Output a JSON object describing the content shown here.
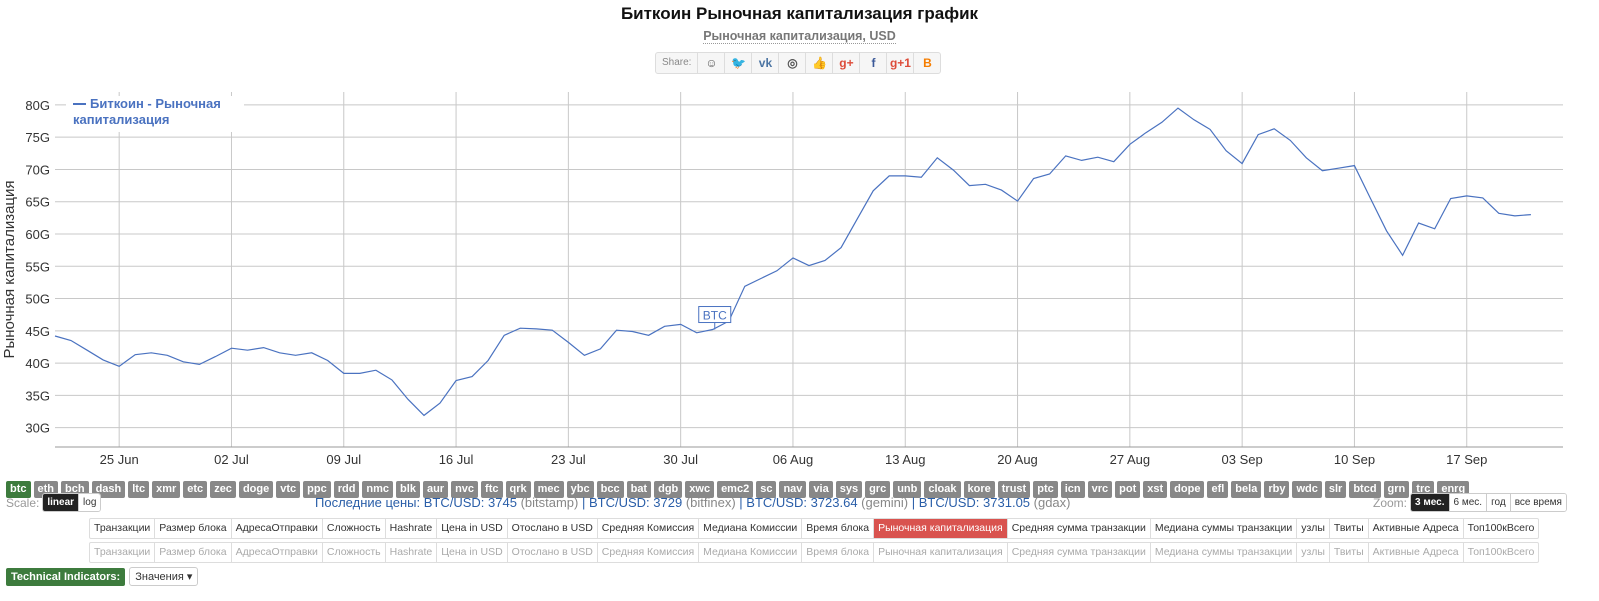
{
  "header": {
    "title": "Биткоин Рыночная капитализация график",
    "subtitle": "Рыночная капитализация, USD"
  },
  "share": {
    "label": "Share:",
    "buttons": [
      {
        "name": "reddit-icon",
        "glyph": "☺",
        "color": "#555"
      },
      {
        "name": "twitter-icon",
        "glyph": "🐦",
        "color": "#1da1f2"
      },
      {
        "name": "vk-icon",
        "glyph": "vk",
        "color": "#4c75a3"
      },
      {
        "name": "weibo-icon",
        "glyph": "◎",
        "color": "#555"
      },
      {
        "name": "like-icon",
        "glyph": "👍",
        "color": "#4c75a3"
      },
      {
        "name": "gplus-icon",
        "glyph": "g+",
        "color": "#dd4b39"
      },
      {
        "name": "facebook-icon",
        "glyph": "f",
        "color": "#3b5998"
      },
      {
        "name": "gplusone-icon",
        "glyph": "g+1",
        "color": "#dd4b39"
      },
      {
        "name": "blogger-icon",
        "glyph": "B",
        "color": "#f57d00"
      }
    ]
  },
  "chart_data": {
    "type": "line",
    "ylabel": "Рыночная капитализация",
    "ylim": [
      27000000000,
      82000000000
    ],
    "yticks": [
      30000000000,
      35000000000,
      40000000000,
      45000000000,
      50000000000,
      55000000000,
      60000000000,
      65000000000,
      70000000000,
      75000000000,
      80000000000
    ],
    "ytick_labels": [
      "30G",
      "35G",
      "40G",
      "45G",
      "50G",
      "55G",
      "60G",
      "65G",
      "70G",
      "75G",
      "80G"
    ],
    "xrange": [
      "2018-06-21",
      "2018-09-23"
    ],
    "xticks": [
      "2018-06-25",
      "2018-07-02",
      "2018-07-09",
      "2018-07-16",
      "2018-07-23",
      "2018-07-30",
      "2018-08-06",
      "2018-08-13",
      "2018-08-20",
      "2018-08-27",
      "2018-09-03",
      "2018-09-10",
      "2018-09-17"
    ],
    "xtick_labels": [
      "25 Jun",
      "02 Jul",
      "09 Jul",
      "16 Jul",
      "23 Jul",
      "30 Jul",
      "06 Aug",
      "13 Aug",
      "20 Aug",
      "27 Aug",
      "03 Sep",
      "10 Sep",
      "17 Sep"
    ],
    "grid": true,
    "legend_position": "top-left",
    "series": [
      {
        "name": "Биткоин - Рыночная капитализация",
        "color": "#4a72c0",
        "x": [
          "2018-06-21",
          "2018-06-22",
          "2018-06-23",
          "2018-06-24",
          "2018-06-25",
          "2018-06-26",
          "2018-06-27",
          "2018-06-28",
          "2018-06-29",
          "2018-06-30",
          "2018-07-01",
          "2018-07-02",
          "2018-07-03",
          "2018-07-04",
          "2018-07-05",
          "2018-07-06",
          "2018-07-07",
          "2018-07-08",
          "2018-07-09",
          "2018-07-10",
          "2018-07-11",
          "2018-07-12",
          "2018-07-13",
          "2018-07-14",
          "2018-07-15",
          "2018-07-16",
          "2018-07-17",
          "2018-07-18",
          "2018-07-19",
          "2018-07-20",
          "2018-07-21",
          "2018-07-22",
          "2018-07-23",
          "2018-07-24",
          "2018-07-25",
          "2018-07-26",
          "2018-07-27",
          "2018-07-28",
          "2018-07-29",
          "2018-07-30",
          "2018-07-31",
          "2018-08-01",
          "2018-08-02",
          "2018-08-03",
          "2018-08-04",
          "2018-08-05",
          "2018-08-06",
          "2018-08-07",
          "2018-08-08",
          "2018-08-09",
          "2018-08-10",
          "2018-08-11",
          "2018-08-12",
          "2018-08-13",
          "2018-08-14",
          "2018-08-15",
          "2018-08-16",
          "2018-08-17",
          "2018-08-18",
          "2018-08-19",
          "2018-08-20",
          "2018-08-21",
          "2018-08-22",
          "2018-08-23",
          "2018-08-24",
          "2018-08-25",
          "2018-08-26",
          "2018-08-27",
          "2018-08-28",
          "2018-08-29",
          "2018-08-30",
          "2018-08-31",
          "2018-09-01",
          "2018-09-02",
          "2018-09-03",
          "2018-09-04",
          "2018-09-05",
          "2018-09-06",
          "2018-09-07",
          "2018-09-08",
          "2018-09-09",
          "2018-09-10",
          "2018-09-11",
          "2018-09-12",
          "2018-09-13",
          "2018-09-14",
          "2018-09-15",
          "2018-09-16",
          "2018-09-17",
          "2018-09-18",
          "2018-09-19",
          "2018-09-20",
          "2018-09-21"
        ],
        "values": [
          44200000000,
          43500000000,
          42000000000,
          40500000000,
          39500000000,
          41300000000,
          41600000000,
          41200000000,
          40200000000,
          39800000000,
          41000000000,
          42300000000,
          42000000000,
          42400000000,
          41600000000,
          41200000000,
          41600000000,
          40400000000,
          38400000000,
          38400000000,
          38900000000,
          37400000000,
          34400000000,
          31900000000,
          33800000000,
          37300000000,
          37900000000,
          40400000000,
          44300000000,
          45400000000,
          45300000000,
          45100000000,
          43200000000,
          41200000000,
          42200000000,
          45100000000,
          44900000000,
          44300000000,
          45700000000,
          46000000000,
          44700000000,
          45200000000,
          46500000000,
          51900000000,
          53100000000,
          54300000000,
          56300000000,
          55100000000,
          55900000000,
          57900000000,
          62300000000,
          66700000000,
          69000000000,
          69000000000,
          68800000000,
          71800000000,
          69900000000,
          67500000000,
          67700000000,
          66800000000,
          65100000000,
          68600000000,
          69300000000,
          72100000000,
          71400000000,
          71900000000,
          71200000000,
          73900000000,
          75700000000,
          77300000000,
          79500000000,
          77700000000,
          76200000000,
          72900000000,
          70900000000,
          75400000000,
          76300000000,
          74500000000,
          71800000000,
          69800000000,
          70200000000,
          70600000000,
          65500000000,
          60500000000,
          56700000000,
          61700000000,
          60800000000,
          65500000000,
          65900000000,
          65600000000,
          63200000000,
          62800000000,
          63000000000
        ]
      }
    ],
    "annotations": [
      {
        "text": "BTC",
        "date": "2018-08-01"
      }
    ]
  },
  "coins": [
    "btc",
    "eth",
    "bch",
    "dash",
    "ltc",
    "xmr",
    "etc",
    "zec",
    "doge",
    "vtc",
    "ppc",
    "rdd",
    "nmc",
    "blk",
    "aur",
    "nvc",
    "ftc",
    "qrk",
    "mec",
    "ybc",
    "bcc",
    "bat",
    "dgb",
    "xwc",
    "emc2",
    "sc",
    "nav",
    "via",
    "sys",
    "grc",
    "unb",
    "cloak",
    "kore",
    "trust",
    "ptc",
    "icn",
    "vrc",
    "pot",
    "xst",
    "dope",
    "efl",
    "bela",
    "rby",
    "wdc",
    "slr",
    "btcd",
    "grn",
    "trc",
    "enrg"
  ],
  "coins_active": "btc",
  "scale": {
    "label": "Scale:",
    "options": [
      "linear",
      "log"
    ],
    "active": "linear"
  },
  "prices": {
    "label": "Последние цены:",
    "items": [
      {
        "pair": "BTC/USD: 3745",
        "ex": "(bitstamp)"
      },
      {
        "pair": "BTC/USD: 3729",
        "ex": "(bitfinex)"
      },
      {
        "pair": "BTC/USD: 3723.64",
        "ex": "(gemini)"
      },
      {
        "pair": "BTC/USD: 3731.05",
        "ex": "(gdax)"
      }
    ]
  },
  "zoom": {
    "label": "Zoom:",
    "options": [
      "3 мес.",
      "6 мес.",
      "год",
      "все время"
    ],
    "active": "3 мес."
  },
  "tabs": [
    "Транзакции",
    "Размер блока",
    "АдресаОтправки",
    "Сложность",
    "Hashrate",
    "Цена in USD",
    "Отослано в USD",
    "Средняя Комиссия",
    "Медиана Комиссии",
    "Время блока",
    "Рыночная капитализация",
    "Средняя сумма транзакции",
    "Медиана суммы транзакции",
    "узлы",
    "Твиты",
    "Активные Адреса",
    "Топ100кВсего"
  ],
  "tabs_active": "Рыночная капитализация",
  "tech": {
    "label": "Technical Indicators:",
    "dropdown": "Значения"
  }
}
